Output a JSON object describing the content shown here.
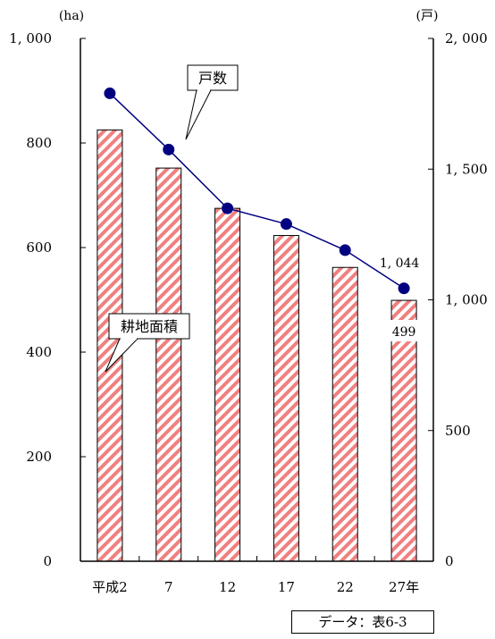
{
  "chart_data": {
    "type": "bar+line",
    "title": "",
    "categories": [
      "平成2",
      "7",
      "12",
      "17",
      "22",
      "27年"
    ],
    "left_axis": {
      "unit": "(ha)",
      "ylim": [
        0,
        1000
      ],
      "ticks": [
        0,
        200,
        400,
        600,
        800,
        1000
      ],
      "tick_labels": [
        "0",
        "200",
        "400",
        "600",
        "800",
        "1, 000"
      ]
    },
    "right_axis": {
      "unit": "(戸)",
      "ylim": [
        0,
        2000
      ],
      "ticks": [
        0,
        500,
        1000,
        1500,
        2000
      ],
      "tick_labels": [
        "0",
        "500",
        "1, 000",
        "1, 500",
        "2, 000"
      ]
    },
    "series": [
      {
        "name": "耕地面積",
        "type": "bar",
        "axis": "left",
        "values": [
          825,
          752,
          675,
          623,
          562,
          499
        ],
        "color": "#f08080",
        "pattern": "diagonal-hatch"
      },
      {
        "name": "戸数",
        "type": "line",
        "axis": "right",
        "values": [
          1790,
          1575,
          1350,
          1290,
          1190,
          1044
        ],
        "color": "#000080"
      }
    ],
    "data_labels": [
      {
        "series": "戸数",
        "category": "27年",
        "text": "1, 044"
      },
      {
        "series": "耕地面積",
        "category": "27年",
        "text": "499"
      }
    ],
    "grid": false
  },
  "source": "データ：表6-3"
}
